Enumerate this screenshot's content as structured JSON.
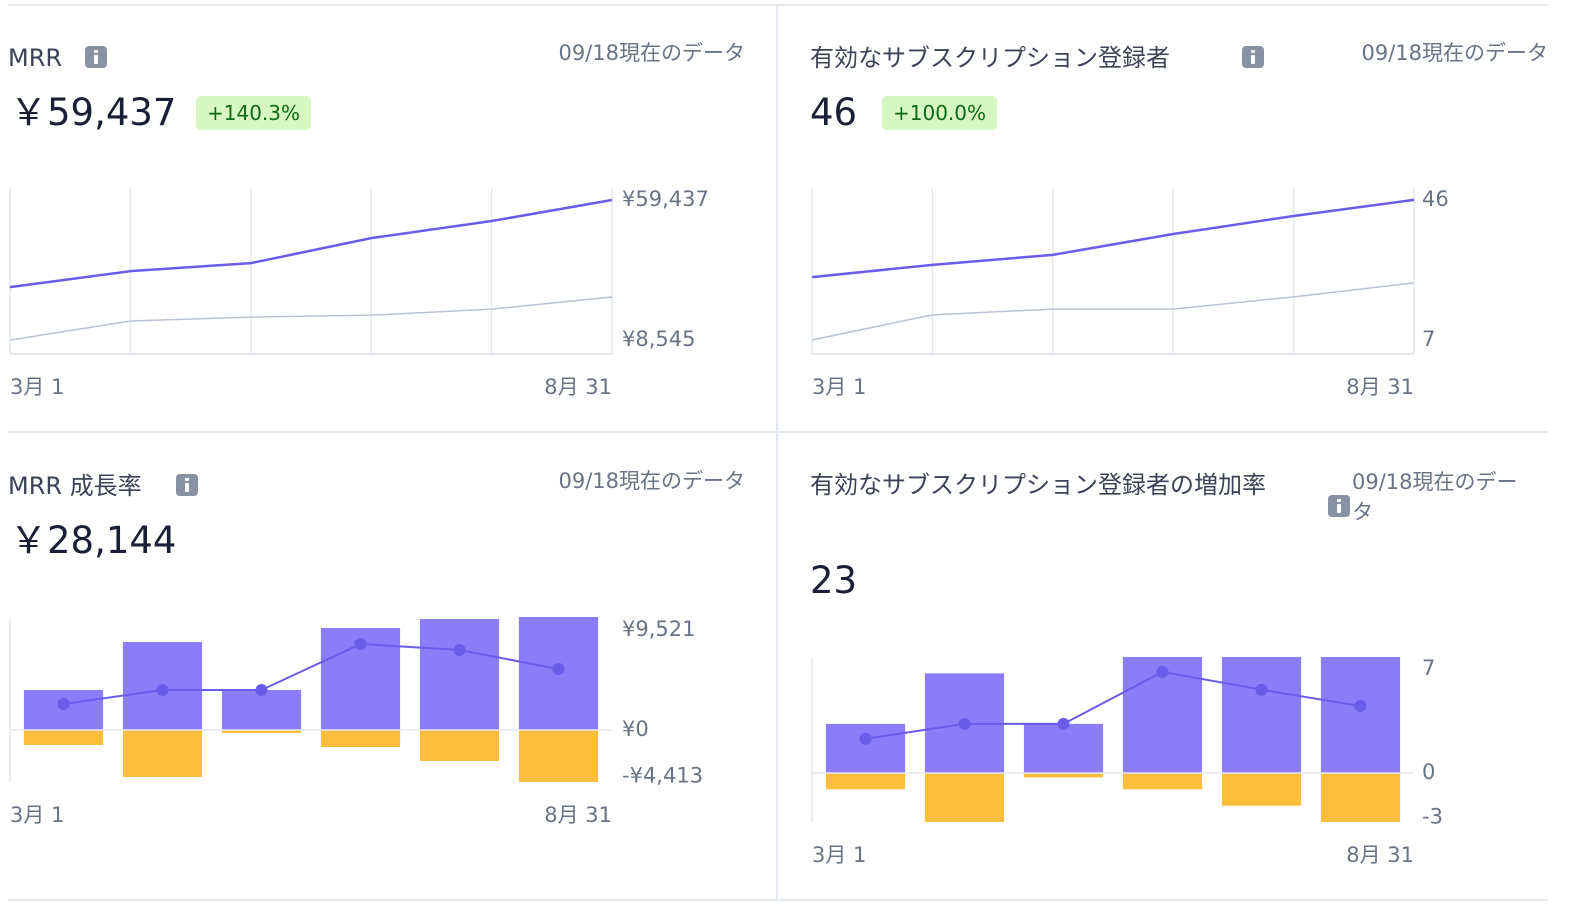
{
  "chart_data": [
    {
      "type": "line",
      "title": "MRR",
      "note": "09/18現在のデータ",
      "kpi": "￥59,437",
      "change": "+140.3%",
      "categories": [
        "3月 1",
        null,
        null,
        null,
        null,
        "8月 31"
      ],
      "series": [
        {
          "color": "#6a5ce8",
          "values": [
            27800,
            33600,
            36500,
            45600,
            51800,
            59437
          ]
        },
        {
          "color": "#b9c2d3",
          "values": [
            8545,
            15500,
            16900,
            17600,
            19800,
            24200
          ]
        }
      ],
      "ylim": [
        3500,
        63800
      ],
      "yticks": [
        {
          "value": 59437,
          "label": "¥59,437"
        },
        {
          "value": 8545,
          "label": "¥8,545"
        }
      ]
    },
    {
      "type": "line",
      "title": "有効なサブスクリプション登録者",
      "note": "09/18現在のデータ",
      "kpi": "46",
      "change": "+100.0%",
      "categories": [
        "3月 1",
        null,
        null,
        null,
        null,
        "8月 31"
      ],
      "series": [
        {
          "color": "#6a5ce8",
          "values": [
            24.5,
            27.9,
            30.7,
            36.5,
            41.5,
            46
          ]
        },
        {
          "color": "#b9c2d3",
          "values": [
            7,
            14,
            15.6,
            15.6,
            19,
            22.9
          ]
        }
      ],
      "ylim": [
        3.1,
        49.3
      ],
      "yticks": [
        46,
        7
      ]
    },
    {
      "type": "bar",
      "title": "MRR 成長率",
      "note": "09/18現在のデータ",
      "kpi": "￥28,144",
      "categories": [
        "3月 1",
        null,
        null,
        null,
        null,
        "8月 31"
      ],
      "series": [
        {
          "color": "#8c7cf7",
          "values": [
            3800,
            8360,
            3800,
            9690,
            10545,
            10735
          ]
        },
        {
          "color": "#fbbd3c",
          "values": [
            -1425,
            -4465,
            -285,
            -1615,
            -2945,
            -4940
          ]
        },
        {
          "color": "#6a5ce8",
          "type": "line",
          "values": [
            2470,
            3800,
            3800,
            8170,
            7600,
            5795
          ]
        }
      ],
      "ylim": [
        -4940,
        10735
      ],
      "yticks": [
        {
          "value": 9521,
          "label": "¥9,521"
        },
        {
          "value": 0,
          "label": "¥0"
        },
        {
          "value": -4413,
          "label": "-¥4,413"
        }
      ]
    },
    {
      "type": "bar",
      "title": "有効なサブスクリプション登録者の増加率",
      "note": "09/18現在のデータ",
      "kpi": "23",
      "categories": [
        "3月 1",
        null,
        null,
        null,
        null,
        "8月 31"
      ],
      "series": [
        {
          "color": "#8c7cf7",
          "values": [
            3.3,
            6.7,
            3.3,
            7.8,
            7.8,
            7.8
          ]
        },
        {
          "color": "#fbbd3c",
          "values": [
            -1.1,
            -3.3,
            -0.3,
            -1.1,
            -2.2,
            -3.3
          ]
        },
        {
          "color": "#6a5ce8",
          "type": "line",
          "values": [
            2.3,
            3.3,
            3.3,
            6.8,
            5.6,
            4.5
          ]
        }
      ],
      "ylim": [
        -3.3,
        7.8
      ],
      "yticks": [
        7,
        0,
        -3
      ]
    }
  ]
}
